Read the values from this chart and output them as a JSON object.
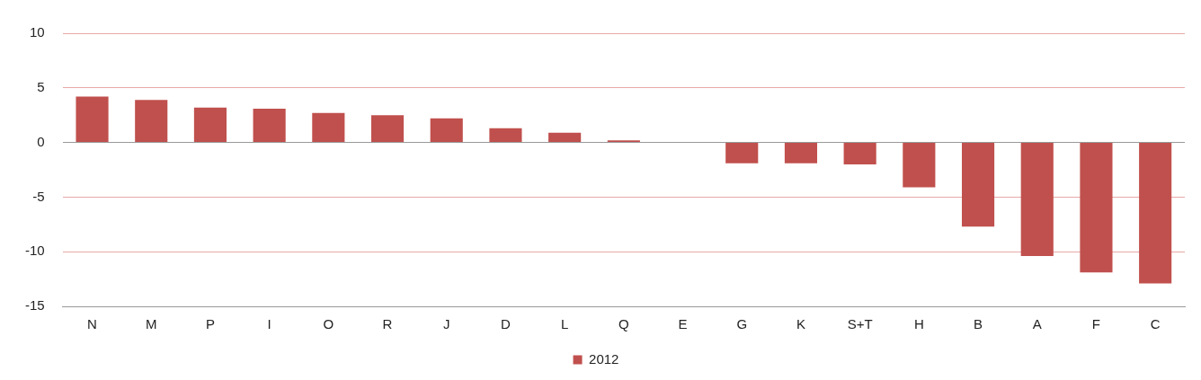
{
  "chart_data": {
    "type": "bar",
    "categories": [
      "N",
      "M",
      "P",
      "I",
      "O",
      "R",
      "J",
      "D",
      "L",
      "Q",
      "E",
      "G",
      "K",
      "S+T",
      "H",
      "B",
      "A",
      "F",
      "C"
    ],
    "series": [
      {
        "name": "2012",
        "color": "#c0504d",
        "values": [
          4.2,
          3.9,
          3.2,
          3.1,
          2.7,
          2.5,
          2.2,
          1.3,
          0.9,
          0.2,
          0,
          -1.9,
          -1.9,
          -2.0,
          -4.1,
          -7.7,
          -10.4,
          -11.9,
          -12.9
        ]
      }
    ],
    "ylim": [
      -15,
      10
    ],
    "yticks": [
      -15,
      -10,
      -5,
      0,
      5,
      10
    ],
    "grid": "y",
    "legend": "bottom"
  }
}
